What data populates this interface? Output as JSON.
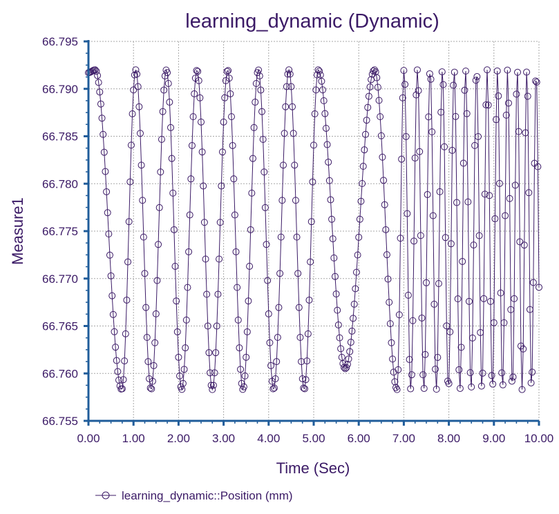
{
  "chart_data": {
    "type": "line",
    "title": "learning_dynamic (Dynamic)",
    "xlabel": "Time (Sec)",
    "ylabel": "Measure1",
    "xlim": [
      0,
      10
    ],
    "ylim": [
      66.755,
      66.795
    ],
    "x_ticks": [
      "0.00",
      "1.00",
      "2.00",
      "3.00",
      "4.00",
      "5.00",
      "6.00",
      "7.00",
      "8.00",
      "9.00",
      "10.00"
    ],
    "y_ticks": [
      "66.795",
      "66.790",
      "66.785",
      "66.780",
      "66.775",
      "66.770",
      "66.765",
      "66.760",
      "66.755"
    ],
    "grid": true,
    "legend_position": "bottom-left",
    "series": [
      {
        "name": "learning_dynamic::Position (mm)",
        "marker": "open-circle",
        "color": "#3b1a66",
        "sampling_interval": 0.025,
        "description_of_shape": "oscillation between ~66.7583 and ~66.7920; ~0.68 s period from 0.4 s to 5.0 s, a slow dip to ~66.7605 near 5.7 s, then increasing frequency from 6.4 s to 10 s",
        "key_points": [
          {
            "x": 0.0,
            "y": 66.7917
          },
          {
            "x": 0.15,
            "y": 66.792
          },
          {
            "x": 0.74,
            "y": 66.7583
          },
          {
            "x": 1.05,
            "y": 66.792
          },
          {
            "x": 1.39,
            "y": 66.7583
          },
          {
            "x": 1.73,
            "y": 66.792
          },
          {
            "x": 2.07,
            "y": 66.7583
          },
          {
            "x": 2.41,
            "y": 66.792
          },
          {
            "x": 2.75,
            "y": 66.7583
          },
          {
            "x": 3.09,
            "y": 66.792
          },
          {
            "x": 3.43,
            "y": 66.7583
          },
          {
            "x": 3.77,
            "y": 66.792
          },
          {
            "x": 4.11,
            "y": 66.7583
          },
          {
            "x": 4.45,
            "y": 66.792
          },
          {
            "x": 4.79,
            "y": 66.7583
          },
          {
            "x": 5.1,
            "y": 66.792
          },
          {
            "x": 5.7,
            "y": 66.7605
          },
          {
            "x": 6.35,
            "y": 66.792
          },
          {
            "x": 6.85,
            "y": 66.7583
          },
          {
            "x": 7.0,
            "y": 66.792
          },
          {
            "x": 8.0,
            "y": 66.792
          },
          {
            "x": 9.0,
            "y": 66.7583
          },
          {
            "x": 10.0,
            "y": 66.792
          }
        ]
      }
    ]
  },
  "colors": {
    "text": "#3b1a66",
    "axis": "#1f5c9a",
    "grid": "#a7a7a7",
    "series": "#3b1a66",
    "background": "#ffffff"
  }
}
